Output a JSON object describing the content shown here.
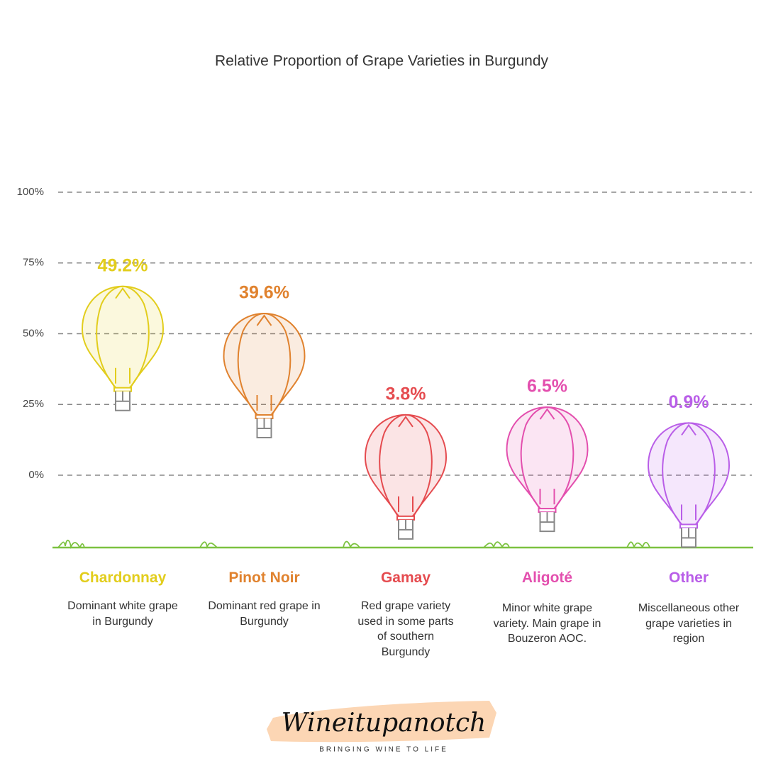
{
  "chart_data": {
    "type": "balloon",
    "title": "Relative Proportion of Grape Varieties in Burgundy",
    "categories": [
      "Chardonnay",
      "Pinot Noir",
      "Gamay",
      "Aligoté",
      "Other"
    ],
    "values": [
      49.2,
      39.6,
      3.8,
      6.5,
      0.9
    ],
    "value_labels": [
      "49.2%",
      "39.6%",
      "3.8%",
      "6.5%",
      "0.9%"
    ],
    "descriptions": [
      "Dominant white grape in Burgundy",
      "Dominant red grape in Burgundy",
      "Red grape variety used in some parts of southern Burgundy",
      "Minor white grape variety. Main grape in Bouzeron AOC.",
      "Miscellaneous other grape varieties in region"
    ],
    "colors": [
      "#e2cd1c",
      "#e0822e",
      "#e54b4f",
      "#e34fae",
      "#b95ee8"
    ],
    "ylim": [
      0,
      100
    ],
    "yticks": [
      {
        "value": 0,
        "label": "0%"
      },
      {
        "value": 25,
        "label": "25%"
      },
      {
        "value": 50,
        "label": "50%"
      },
      {
        "value": 75,
        "label": "75%"
      },
      {
        "value": 100,
        "label": "100%"
      }
    ],
    "grid": true
  },
  "logo": {
    "name": "Wineitupanotch",
    "tagline": "BRINGING WINE TO LIFE"
  }
}
